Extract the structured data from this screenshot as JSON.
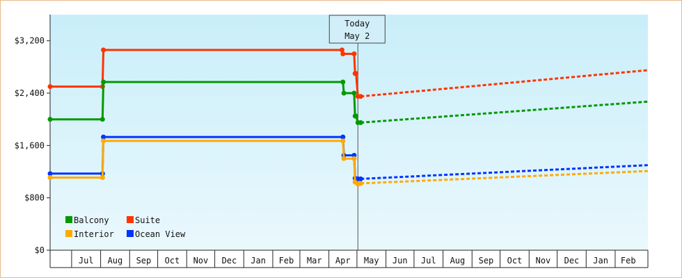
{
  "chart_data": {
    "type": "line",
    "y_axis": {
      "min": 0,
      "max": 3600,
      "ticks": [
        0,
        800,
        1600,
        2400,
        3200
      ],
      "tick_labels": [
        "$0",
        "$800",
        "$1,600",
        "$2,400",
        "$3,200"
      ]
    },
    "x_axis": {
      "start": "2019-06-08",
      "end": "2021-03-08",
      "months": [
        {
          "label": "Jul",
          "start": "2019-07-01",
          "end": "2019-07-31"
        },
        {
          "label": "Aug",
          "start": "2019-08-01",
          "end": "2019-08-31"
        },
        {
          "label": "Sep",
          "start": "2019-09-01",
          "end": "2019-09-30"
        },
        {
          "label": "Oct",
          "start": "2019-10-01",
          "end": "2019-10-31"
        },
        {
          "label": "Nov",
          "start": "2019-11-01",
          "end": "2019-11-30"
        },
        {
          "label": "Dec",
          "start": "2019-12-01",
          "end": "2019-12-31"
        },
        {
          "label": "Jan",
          "start": "2020-01-01",
          "end": "2020-01-31"
        },
        {
          "label": "Feb",
          "start": "2020-02-01",
          "end": "2020-02-29"
        },
        {
          "label": "Mar",
          "start": "2020-03-01",
          "end": "2020-03-31"
        },
        {
          "label": "Apr",
          "start": "2020-04-01",
          "end": "2020-04-30"
        },
        {
          "label": "May",
          "start": "2020-05-01",
          "end": "2020-05-31"
        },
        {
          "label": "Jun",
          "start": "2020-06-01",
          "end": "2020-06-30"
        },
        {
          "label": "Jul",
          "start": "2020-07-01",
          "end": "2020-07-31"
        },
        {
          "label": "Aug",
          "start": "2020-08-01",
          "end": "2020-08-31"
        },
        {
          "label": "Sep",
          "start": "2020-09-01",
          "end": "2020-09-30"
        },
        {
          "label": "Oct",
          "start": "2020-10-01",
          "end": "2020-10-31"
        },
        {
          "label": "Nov",
          "start": "2020-11-01",
          "end": "2020-11-30"
        },
        {
          "label": "Dec",
          "start": "2020-12-01",
          "end": "2020-12-31"
        },
        {
          "label": "Jan",
          "start": "2021-01-01",
          "end": "2021-01-31"
        },
        {
          "label": "Feb",
          "start": "2021-02-01",
          "end": "2021-02-28"
        }
      ]
    },
    "today": {
      "date": "2020-05-02",
      "line1": "Today",
      "line2": "May 2"
    },
    "series": [
      {
        "name": "Suite",
        "color": "#ff3300",
        "points": [
          [
            "2019-06-08",
            2500
          ],
          [
            "2019-08-03",
            2500
          ],
          [
            "2019-08-04",
            3060
          ],
          [
            "2020-04-15",
            3060
          ],
          [
            "2020-04-16",
            3000
          ],
          [
            "2020-04-28",
            3000
          ],
          [
            "2020-04-29",
            2700
          ],
          [
            "2020-04-30",
            2700
          ],
          [
            "2020-05-02",
            2350
          ]
        ],
        "forecast": [
          [
            "2020-05-05",
            2350
          ],
          [
            "2021-03-08",
            2750
          ]
        ]
      },
      {
        "name": "Balcony",
        "color": "#009900",
        "points": [
          [
            "2019-06-08",
            2000
          ],
          [
            "2019-08-03",
            2000
          ],
          [
            "2019-08-04",
            2570
          ],
          [
            "2020-04-16",
            2570
          ],
          [
            "2020-04-17",
            2400
          ],
          [
            "2020-04-28",
            2400
          ],
          [
            "2020-04-29",
            2050
          ],
          [
            "2020-04-30",
            2050
          ],
          [
            "2020-05-02",
            1950
          ]
        ],
        "forecast": [
          [
            "2020-05-05",
            1950
          ],
          [
            "2021-03-08",
            2270
          ]
        ]
      },
      {
        "name": "Ocean View",
        "color": "#0033ff",
        "points": [
          [
            "2019-06-08",
            1170
          ],
          [
            "2019-08-03",
            1170
          ],
          [
            "2019-08-04",
            1730
          ],
          [
            "2020-04-16",
            1730
          ],
          [
            "2020-04-17",
            1450
          ],
          [
            "2020-04-28",
            1450
          ],
          [
            "2020-04-29",
            1100
          ],
          [
            "2020-05-02",
            1090
          ]
        ],
        "forecast": [
          [
            "2020-05-05",
            1090
          ],
          [
            "2021-03-08",
            1300
          ]
        ]
      },
      {
        "name": "Interior",
        "color": "#ffaa00",
        "points": [
          [
            "2019-06-08",
            1110
          ],
          [
            "2019-08-03",
            1110
          ],
          [
            "2019-08-04",
            1670
          ],
          [
            "2020-04-16",
            1670
          ],
          [
            "2020-04-17",
            1400
          ],
          [
            "2020-04-28",
            1400
          ],
          [
            "2020-04-29",
            1040
          ],
          [
            "2020-05-02",
            1010
          ]
        ],
        "forecast": [
          [
            "2020-05-05",
            1020
          ],
          [
            "2021-03-08",
            1210
          ]
        ]
      }
    ],
    "legend": {
      "position": "bottom-left",
      "items": [
        {
          "name": "Balcony",
          "color": "#009900"
        },
        {
          "name": "Suite",
          "color": "#ff3300"
        },
        {
          "name": "Interior",
          "color": "#ffaa00"
        },
        {
          "name": "Ocean View",
          "color": "#0033ff"
        }
      ]
    },
    "grid": false,
    "background_gradient": [
      "#c9eef9",
      "#eaf8fd"
    ]
  }
}
